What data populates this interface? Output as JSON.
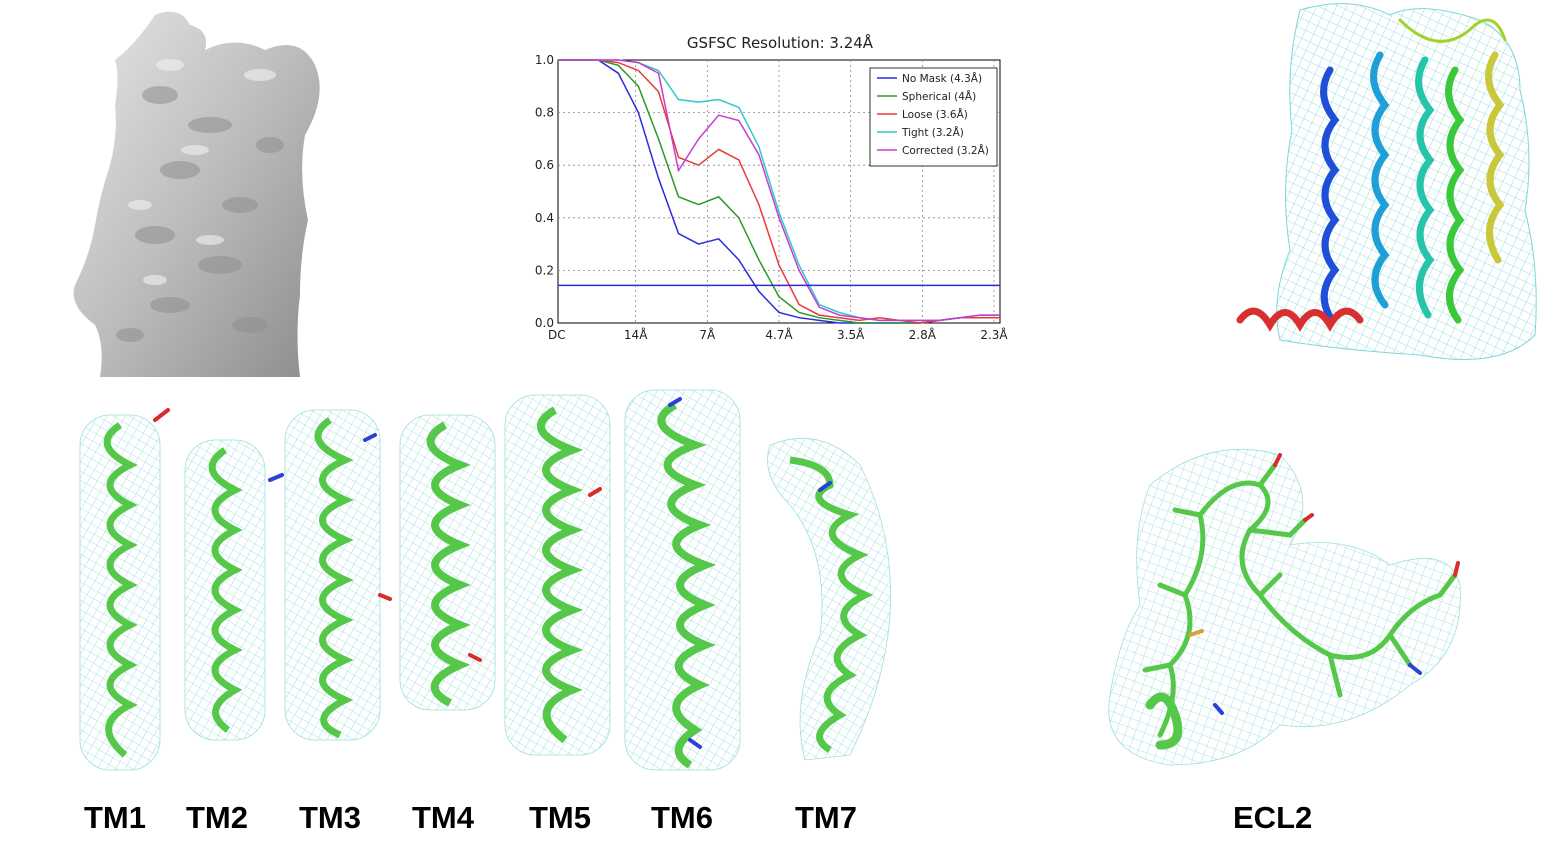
{
  "colors": {
    "density_gray": "#c9c9c9",
    "mesh_cyan": "#7fd6d6",
    "stick_green": "#55c84a",
    "oxygen_red": "#d92b2b",
    "nitrogen_blue": "#2b3fd9",
    "sulfur_orange": "#d9a13a"
  },
  "chart_data": {
    "type": "line",
    "title": "GSFSC Resolution: 3.24Å",
    "xlabel": "",
    "ylabel": "",
    "ylim": [
      0.0,
      1.0
    ],
    "yticks": [
      "0.0",
      "0.2",
      "0.4",
      "0.6",
      "0.8",
      "1.0"
    ],
    "xticks": [
      "DC",
      "14Å",
      "7Å",
      "4.7Å",
      "3.5Å",
      "2.8Å",
      "2.3Å"
    ],
    "x_unit": "spatial frequency (1/Å)",
    "x": [
      0.0,
      0.02,
      0.04,
      0.06,
      0.08,
      0.1,
      0.12,
      0.14,
      0.16,
      0.18,
      0.2,
      0.22,
      0.24,
      0.26,
      0.28,
      0.3,
      0.32,
      0.34,
      0.36,
      0.38,
      0.4,
      0.42,
      0.44
    ],
    "threshold": 0.143,
    "grid": true,
    "legend_position": "top-right",
    "series": [
      {
        "name": "No Mask (4.3Å)",
        "color": "#2b2bdd",
        "values": [
          1.0,
          1.0,
          1.0,
          0.95,
          0.8,
          0.55,
          0.34,
          0.3,
          0.32,
          0.24,
          0.12,
          0.04,
          0.02,
          0.01,
          0.0,
          0.0,
          0.0,
          0.0,
          0.0,
          0.01,
          0.02,
          0.02,
          0.02
        ]
      },
      {
        "name": "Spherical (4Å)",
        "color": "#2a9a2a",
        "values": [
          1.0,
          1.0,
          1.0,
          0.98,
          0.9,
          0.7,
          0.48,
          0.45,
          0.48,
          0.4,
          0.24,
          0.1,
          0.04,
          0.02,
          0.01,
          0.0,
          0.0,
          0.0,
          0.0,
          0.01,
          0.02,
          0.02,
          0.02
        ]
      },
      {
        "name": "Loose (3.6Å)",
        "color": "#e83a3a",
        "values": [
          1.0,
          1.0,
          1.0,
          0.99,
          0.96,
          0.88,
          0.63,
          0.6,
          0.66,
          0.62,
          0.45,
          0.22,
          0.07,
          0.03,
          0.02,
          0.01,
          0.02,
          0.01,
          0.0,
          0.01,
          0.02,
          0.02,
          0.02
        ]
      },
      {
        "name": "Tight (3.2Å)",
        "color": "#33c8c8",
        "values": [
          1.0,
          1.0,
          1.0,
          1.0,
          0.99,
          0.96,
          0.85,
          0.84,
          0.85,
          0.82,
          0.67,
          0.42,
          0.22,
          0.07,
          0.04,
          0.02,
          0.01,
          0.01,
          0.01,
          0.01,
          0.02,
          0.03,
          0.03
        ]
      },
      {
        "name": "Corrected (3.2Å)",
        "color": "#c83ad0",
        "values": [
          1.0,
          1.0,
          1.0,
          1.0,
          0.99,
          0.95,
          0.58,
          0.7,
          0.79,
          0.77,
          0.64,
          0.4,
          0.2,
          0.06,
          0.03,
          0.02,
          0.01,
          0.01,
          0.01,
          0.01,
          0.02,
          0.03,
          0.03
        ]
      }
    ]
  },
  "segments": [
    "TM1",
    "TM2",
    "TM3",
    "TM4",
    "TM5",
    "TM6",
    "TM7"
  ],
  "loop_label": "ECL2"
}
